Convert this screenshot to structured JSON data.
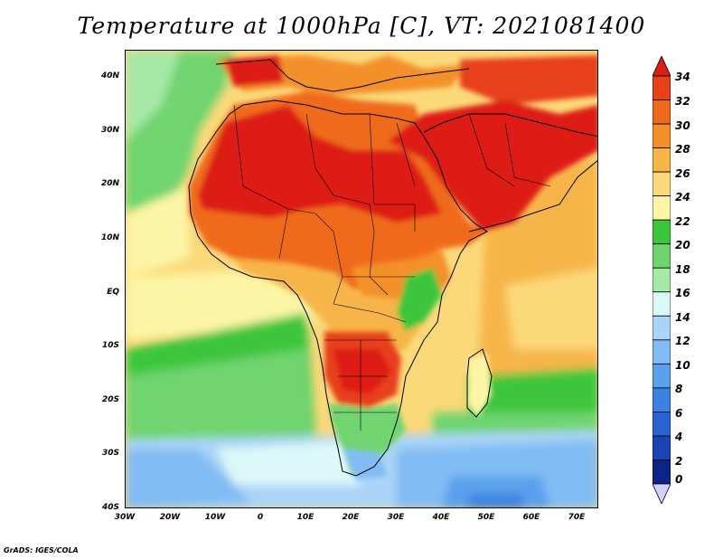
{
  "title": "Temperature at 1000hPa [C], VT: 2021081400",
  "credit": "GrADS: IGES/COLA",
  "lat_labels": [
    "40N",
    "30N",
    "20N",
    "10N",
    "EQ",
    "10S",
    "20S",
    "30S",
    "40S"
  ],
  "lon_labels": [
    "30W",
    "20W",
    "10W",
    "0",
    "10E",
    "20E",
    "30E",
    "40E",
    "50E",
    "60E",
    "70E"
  ],
  "colorbar": {
    "labels": [
      "34",
      "32",
      "30",
      "28",
      "26",
      "24",
      "22",
      "20",
      "18",
      "16",
      "14",
      "12",
      "10",
      "8",
      "6",
      "4",
      "2",
      "0"
    ],
    "colors": [
      "#dd1e14",
      "#e8401a",
      "#f06a1e",
      "#f4902a",
      "#f7b548",
      "#fbd979",
      "#fcf5a6",
      "#3cc63c",
      "#6fd46f",
      "#a6e8a6",
      "#dcf8f8",
      "#aad4f8",
      "#82bcf4",
      "#5aa0ec",
      "#3c82e0",
      "#2a64d0",
      "#1a44b4",
      "#0c2486",
      "#d4d0f8"
    ]
  }
}
